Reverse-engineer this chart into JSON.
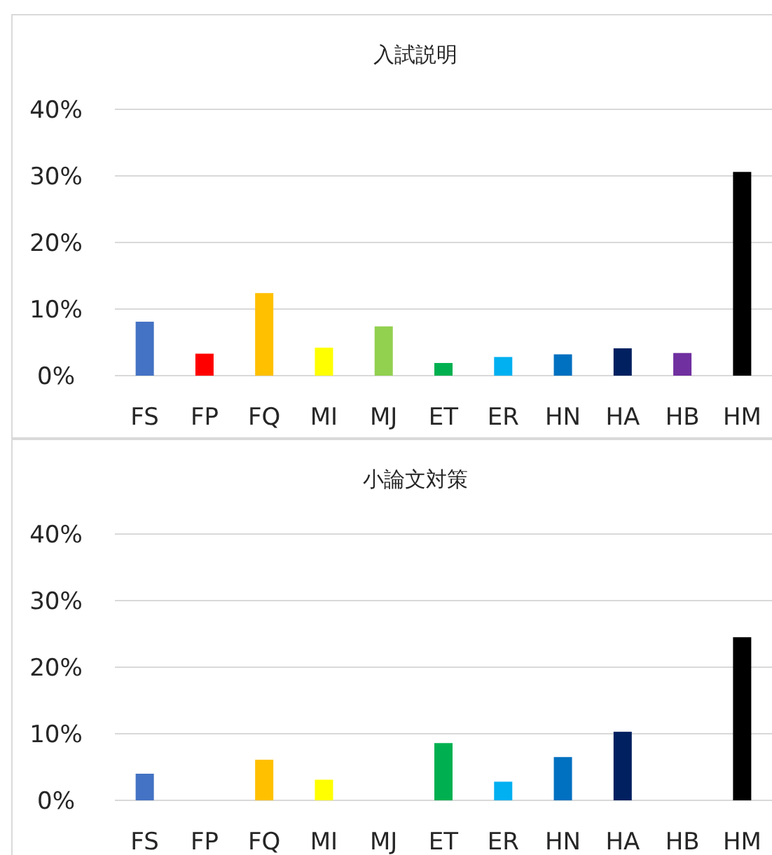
{
  "chart_data": [
    {
      "type": "bar",
      "title": "入試説明",
      "categories": [
        "FS",
        "FP",
        "FQ",
        "MI",
        "MJ",
        "ET",
        "ER",
        "HN",
        "HA",
        "HB",
        "HM"
      ],
      "values": [
        8.1,
        3.3,
        12.4,
        4.2,
        7.4,
        1.9,
        2.8,
        3.2,
        4.1,
        3.4,
        30.6
      ],
      "colors": [
        "#4472c4",
        "#ff0000",
        "#ffc000",
        "#ffff00",
        "#92d050",
        "#00b050",
        "#00b0f0",
        "#0070c0",
        "#002060",
        "#7030a0",
        "#000000"
      ],
      "ylim": [
        0,
        40
      ],
      "yticks": [
        {
          "value": 0,
          "label": "0%"
        },
        {
          "value": 10,
          "label": "10%"
        },
        {
          "value": 20,
          "label": "20%"
        },
        {
          "value": 30,
          "label": "30%"
        },
        {
          "value": 40,
          "label": "40%"
        }
      ],
      "grid": "y"
    },
    {
      "type": "bar",
      "title": "小論文対策",
      "categories": [
        "FS",
        "FP",
        "FQ",
        "MI",
        "MJ",
        "ET",
        "ER",
        "HN",
        "HA",
        "HB",
        "HM"
      ],
      "values": [
        4.0,
        0,
        6.1,
        3.1,
        0,
        8.6,
        2.8,
        6.5,
        10.3,
        0,
        24.5
      ],
      "colors": [
        "#4472c4",
        "#ff0000",
        "#ffc000",
        "#ffff00",
        "#92d050",
        "#00b050",
        "#00b0f0",
        "#0070c0",
        "#002060",
        "#7030a0",
        "#000000"
      ],
      "ylim": [
        0,
        40
      ],
      "yticks": [
        {
          "value": 0,
          "label": "0%"
        },
        {
          "value": 10,
          "label": "10%"
        },
        {
          "value": 20,
          "label": "20%"
        },
        {
          "value": 30,
          "label": "30%"
        },
        {
          "value": 40,
          "label": "40%"
        }
      ],
      "grid": "y"
    }
  ]
}
